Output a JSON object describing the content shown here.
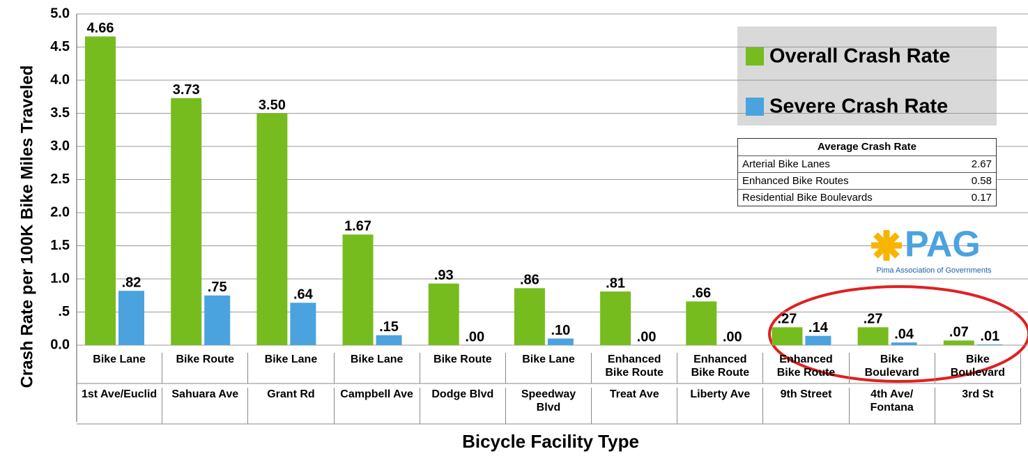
{
  "chart_data": {
    "type": "bar",
    "y_axis_label": "Crash Rate per 100K Bike Miles Traveled",
    "x_axis_label": "Bicycle Facility Type",
    "categories": [
      "1st Ave/Euclid",
      "Sahuara Ave",
      "Grant Rd",
      "Campbell Ave",
      "Dodge Blvd",
      "Speedway Blvd",
      "Treat Ave",
      "Liberty Ave",
      "9th Street",
      "4th Ave/ Fontana",
      "3rd St"
    ],
    "facility_types": [
      "Bike Lane",
      "Bike Route",
      "Bike Lane",
      "Bike Lane",
      "Bike Route",
      "Bike Lane",
      "Enhanced Bike Route",
      "Enhanced Bike Route",
      "Enhanced Bike Route",
      "Bike Boulevard",
      "Bike Boulevard"
    ],
    "series": [
      {
        "name": "Overall Crash Rate",
        "color": "#77bc1f",
        "values": [
          4.66,
          3.73,
          3.5,
          1.67,
          0.93,
          0.86,
          0.81,
          0.66,
          0.27,
          0.27,
          0.07
        ],
        "value_labels": [
          "4.66",
          "3.73",
          "3.50",
          "1.67",
          ".93",
          ".86",
          ".81",
          ".66",
          ".27",
          ".27",
          ".07"
        ]
      },
      {
        "name": "Severe Crash Rate",
        "color": "#4aa3df",
        "values": [
          0.82,
          0.75,
          0.64,
          0.15,
          0.0,
          0.1,
          0.0,
          0.0,
          0.14,
          0.04,
          0.01
        ],
        "value_labels": [
          ".82",
          ".75",
          ".64",
          ".15",
          ".00",
          ".10",
          ".00",
          ".00",
          ".14",
          ".04",
          ".01"
        ]
      }
    ],
    "ylim": [
      0,
      5
    ],
    "yticks": [
      {
        "value": 0,
        "label": "0.0"
      },
      {
        "value": 0.5,
        "label": ".5"
      },
      {
        "value": 1,
        "label": "1.0"
      },
      {
        "value": 1.5,
        "label": "1.5"
      },
      {
        "value": 2,
        "label": "2.0"
      },
      {
        "value": 2.5,
        "label": "2.5"
      },
      {
        "value": 3,
        "label": "3.0"
      },
      {
        "value": 3.5,
        "label": "3.5"
      },
      {
        "value": 4,
        "label": "4.0"
      },
      {
        "value": 4.5,
        "label": "4.5"
      },
      {
        "value": 5,
        "label": "5.0"
      }
    ],
    "grid": true,
    "legend": "top-right",
    "inset_table": {
      "title": "Average Crash Rate",
      "rows": [
        [
          "Arterial Bike Lanes",
          "2.67"
        ],
        [
          "Enhanced Bike Routes",
          "0.58"
        ],
        [
          "Residential Bike Boulevards",
          "0.17"
        ]
      ]
    },
    "logo": {
      "text": "PAG",
      "caption": "Pima Association of Governments"
    }
  }
}
